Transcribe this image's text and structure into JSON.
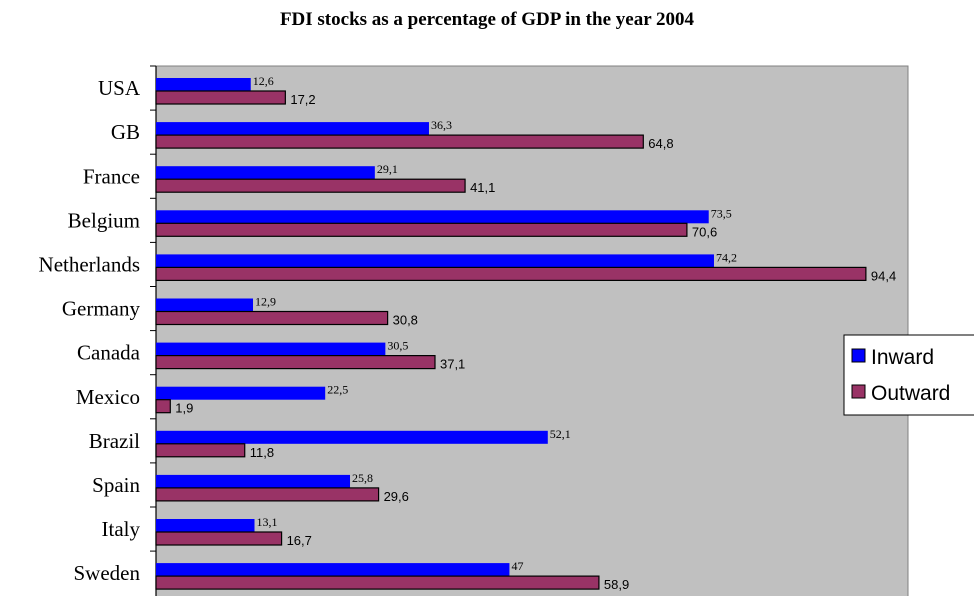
{
  "chart_data": {
    "type": "bar",
    "orientation": "horizontal",
    "title": "FDI stocks as a percentage of GDP in the year 2004",
    "categories": [
      "USA",
      "GB",
      "France",
      "Belgium",
      "Netherlands",
      "Germany",
      "Canada",
      "Mexico",
      "Brazil",
      "Spain",
      "Italy",
      "Sweden"
    ],
    "series": [
      {
        "name": "Inward",
        "color": "#0000ff",
        "values": [
          12.6,
          36.3,
          29.1,
          73.5,
          74.2,
          12.9,
          30.5,
          22.5,
          52.1,
          25.8,
          13.1,
          47
        ],
        "labels": [
          "12,6",
          "36,3",
          "29,1",
          "73,5",
          "74,2",
          "12,9",
          "30,5",
          "22,5",
          "52,1",
          "25,8",
          "13,1",
          "47"
        ]
      },
      {
        "name": "Outward",
        "color": "#993366",
        "values": [
          17.2,
          64.8,
          41.1,
          70.6,
          94.4,
          30.8,
          37.1,
          1.9,
          11.8,
          29.6,
          16.7,
          58.9
        ],
        "labels": [
          "17,2",
          "64,8",
          "41,1",
          "70,6",
          "94,4",
          "30,8",
          "37,1",
          "1,9",
          "11,8",
          "29,6",
          "16,7",
          "58,9"
        ]
      }
    ],
    "xlim": [
      0,
      100
    ],
    "plot_background": "#c0c0c0",
    "grid": false,
    "legend_position": "right"
  }
}
